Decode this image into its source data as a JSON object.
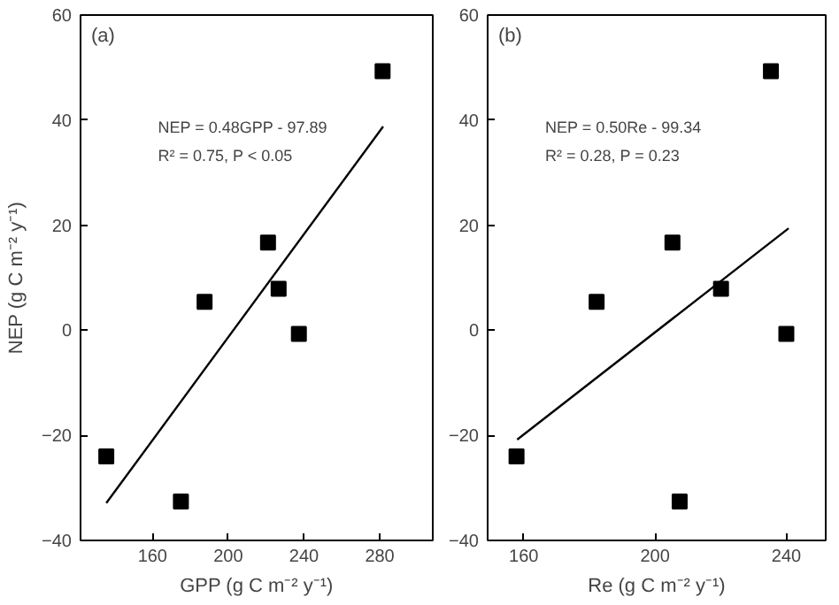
{
  "chart_data": [
    {
      "type": "scatter",
      "title": "(a)",
      "xlabel": "GPP (g C m⁻² y⁻¹)",
      "ylabel": "NEP (g C m⁻² y⁻¹)",
      "marker": "square",
      "xlim": [
        122,
        308
      ],
      "xticks": [
        160,
        200,
        240,
        280
      ],
      "ylim": [
        -40,
        60
      ],
      "yticks": [
        -40,
        -20,
        0,
        20,
        40,
        60
      ],
      "annotations": [
        "NEP = 0.48GPP - 97.89",
        "R² = 0.75, P < 0.05"
      ],
      "series": [
        {
          "color": "#000000",
          "x": [
            135.6,
            175,
            187.5,
            221,
            226.6,
            237.3,
            281.5
          ],
          "values": [
            -24,
            -32.6,
            5.4,
            16.7,
            7.9,
            -0.7,
            49.3
          ]
        },
        {
          "type": "line",
          "marker": "none",
          "color": "#000000",
          "x": [
            135.6,
            281.8
          ],
          "values": [
            -32.9,
            38.8
          ]
        }
      ]
    },
    {
      "type": "scatter",
      "title": "(b)",
      "xlabel": "Re (g C m⁻² y⁻¹)",
      "marker": "square",
      "xlim": [
        149,
        252
      ],
      "xticks": [
        160,
        200,
        240
      ],
      "ylim": [
        -40,
        60
      ],
      "yticks": [
        -40,
        -20,
        0,
        20,
        40,
        60
      ],
      "annotations": [
        "NEP = 0.50Re - 99.34",
        "R² = 0.28, P = 0.23"
      ],
      "series": [
        {
          "color": "#000000",
          "x": [
            157.8,
            182.2,
            205.3,
            207.5,
            220.1,
            235.3,
            240
          ],
          "values": [
            -24,
            5.4,
            16.7,
            -32.6,
            7.9,
            49.3,
            -0.7
          ]
        },
        {
          "type": "line",
          "marker": "none",
          "color": "#000000",
          "x": [
            158,
            240.7
          ],
          "values": [
            -20.8,
            19.4
          ]
        }
      ]
    }
  ]
}
